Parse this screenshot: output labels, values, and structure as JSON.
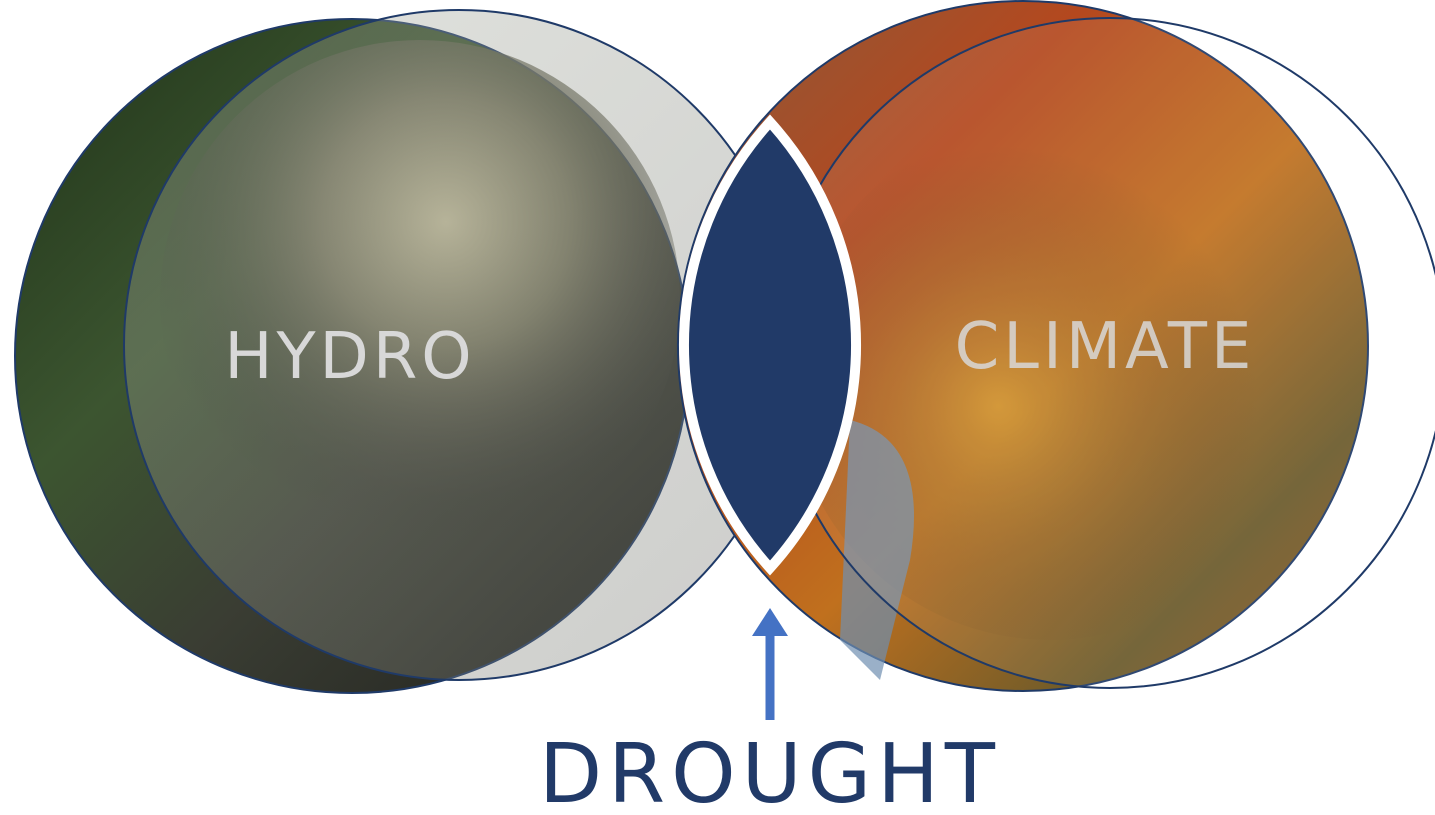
{
  "nodes": [
    {
      "label": "HYDRO"
    },
    {
      "label": "CLIMATE"
    }
  ],
  "intersection": {
    "label": "DROUGHT"
  }
}
